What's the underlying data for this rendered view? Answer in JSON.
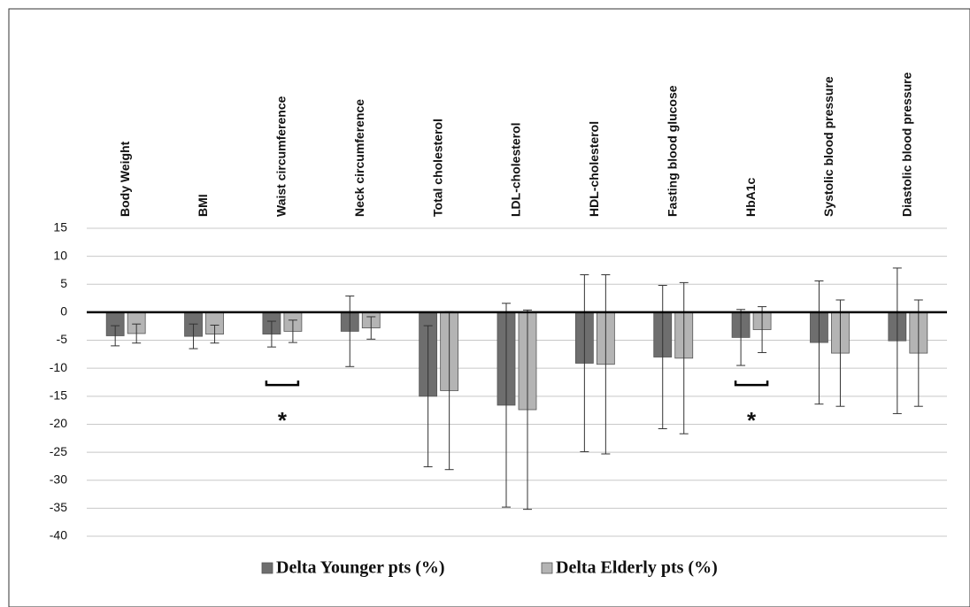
{
  "chart_data": {
    "type": "bar",
    "categories": [
      "Body Weight",
      "BMI",
      "Waist circumference",
      "Neck circumference",
      "Total cholesterol",
      "LDL-cholesterol",
      "HDL-cholesterol",
      "Fasting blood glucose",
      "HbA1c",
      "Systolic blood pressure",
      "Diastolic blood pressure"
    ],
    "series": [
      {
        "name": "Delta Younger pts (%)",
        "color": "#6e6e6e",
        "values": [
          -4.2,
          -4.3,
          -3.9,
          -3.4,
          -15,
          -16.6,
          -9.1,
          -8,
          -4.5,
          -5.4,
          -5.1
        ],
        "errors": [
          1.8,
          2.2,
          2.3,
          6.3,
          12.6,
          18.2,
          15.8,
          12.8,
          5.0,
          11,
          13
        ]
      },
      {
        "name": "Delta Elderly pts (%)",
        "color": "#b4b4b4",
        "values": [
          -3.8,
          -3.9,
          -3.4,
          -2.8,
          -14,
          -17.4,
          -9.3,
          -8.2,
          -3.1,
          -7.3,
          -7.3
        ],
        "errors": [
          1.7,
          1.6,
          2.0,
          2.0,
          14.1,
          17.8,
          16.0,
          13.5,
          4.1,
          9.5,
          9.5
        ]
      }
    ],
    "annotations": [
      {
        "text": "*",
        "category": "Waist circumference"
      },
      {
        "text": "*",
        "category": "HbA1c"
      }
    ],
    "ylim": [
      -40,
      15
    ],
    "yticks": [
      -40,
      -35,
      -30,
      -25,
      -20,
      -15,
      -10,
      -5,
      0,
      5,
      10,
      15
    ],
    "grid": true,
    "legend": "bottom"
  }
}
